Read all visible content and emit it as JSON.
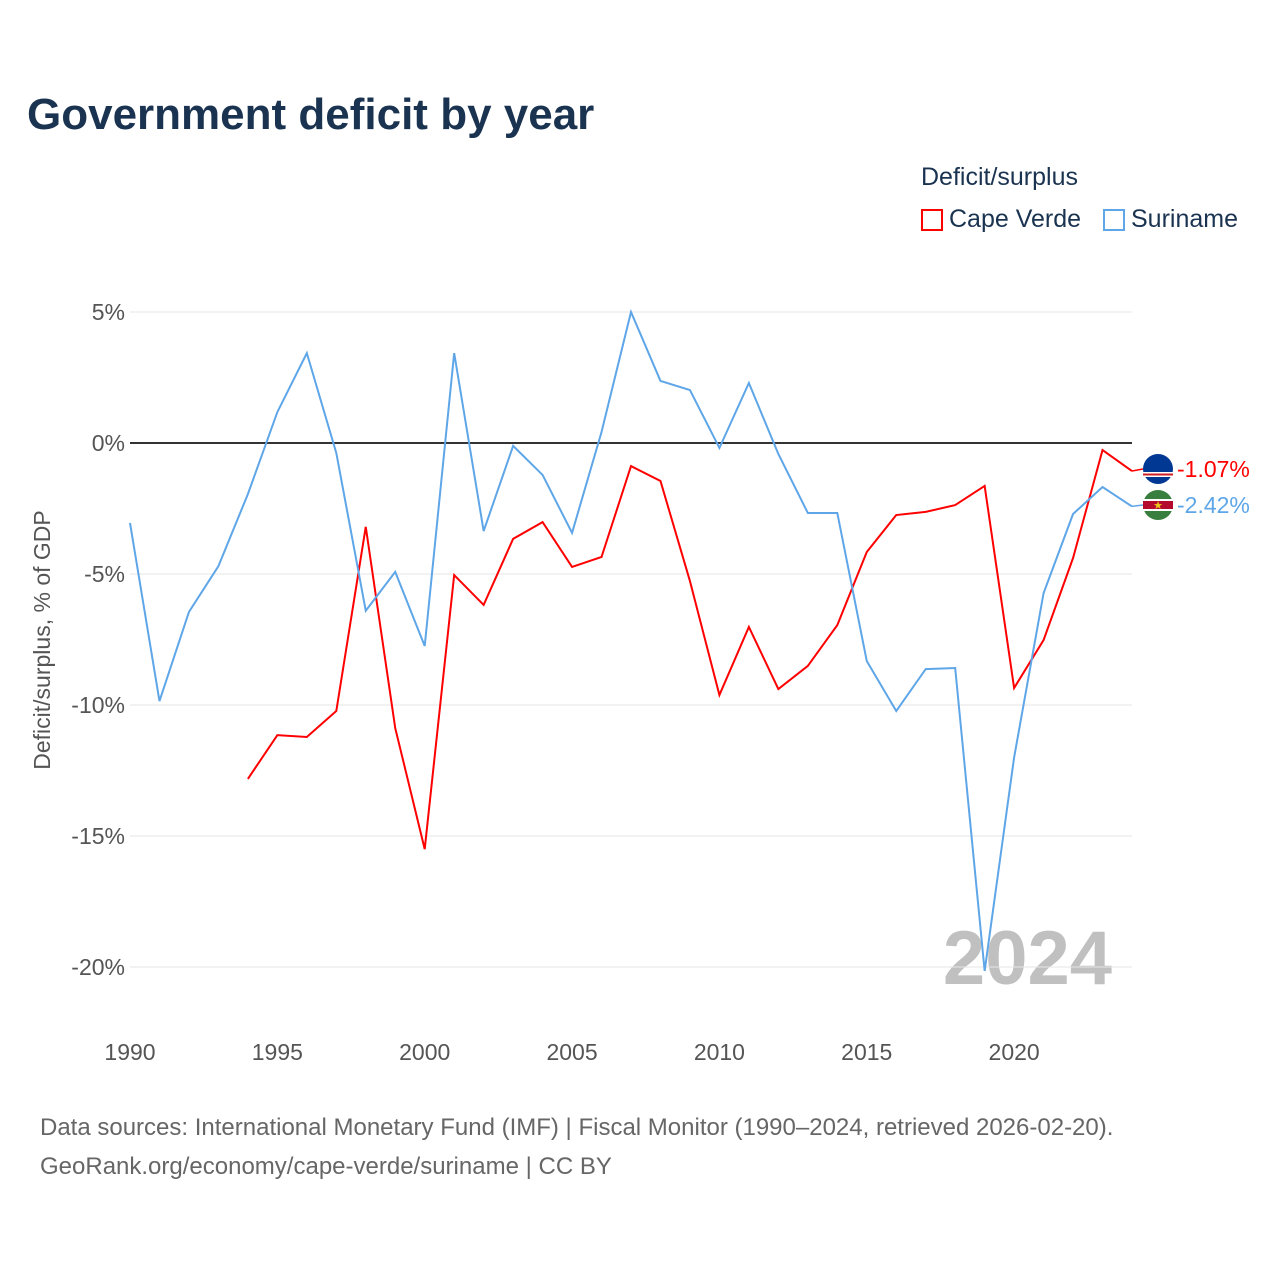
{
  "chart_data": {
    "type": "line",
    "title": "Government deficit by year",
    "ylabel": "Deficit/surplus, % of GDP",
    "xlabel": "",
    "xlim": [
      1990,
      2024
    ],
    "ylim": [
      -20,
      5
    ],
    "x_ticks": [
      1990,
      1995,
      2000,
      2005,
      2010,
      2015,
      2020
    ],
    "x_tick_labels": [
      "1990",
      "1995",
      "2000",
      "2005",
      "2010",
      "2015",
      "2020"
    ],
    "y_ticks": [
      5,
      0,
      -5,
      -10,
      -15,
      -20
    ],
    "y_tick_labels": [
      "5%",
      "0%",
      "-5%",
      "-10%",
      "-15%",
      "-20%"
    ],
    "grid": true,
    "legend": {
      "title": "Deficit/surplus",
      "placement": "top-right"
    },
    "watermark_year": "2024",
    "series": [
      {
        "name": "Cape Verde",
        "color": "#ff0000",
        "end_label": "-1.07%",
        "x": [
          1994,
          1995,
          1996,
          1997,
          1998,
          1999,
          2000,
          2001,
          2002,
          2003,
          2004,
          2005,
          2006,
          2007,
          2008,
          2009,
          2010,
          2011,
          2012,
          2013,
          2014,
          2015,
          2016,
          2017,
          2018,
          2019,
          2020,
          2021,
          2022,
          2023,
          2024
        ],
        "values": [
          -12.82,
          -11.15,
          -11.22,
          -10.23,
          -3.2,
          -10.88,
          -15.5,
          -5.04,
          -6.18,
          -3.66,
          -3.02,
          -4.73,
          -4.35,
          -0.88,
          -1.45,
          -5.27,
          -9.62,
          -7.02,
          -9.39,
          -8.51,
          -6.95,
          -4.16,
          -2.75,
          -2.63,
          -2.37,
          -1.64,
          -9.35,
          -7.52,
          -4.39,
          -0.27,
          -1.07
        ]
      },
      {
        "name": "Suriname",
        "color": "#5ea6e8",
        "end_label": "-2.42%",
        "x": [
          1990,
          1991,
          1992,
          1993,
          1994,
          1995,
          1996,
          1997,
          1998,
          1999,
          2000,
          2001,
          2002,
          2003,
          2004,
          2005,
          2006,
          2007,
          2008,
          2009,
          2010,
          2011,
          2012,
          2013,
          2014,
          2015,
          2016,
          2017,
          2018,
          2019,
          2020,
          2021,
          2022,
          2023,
          2024
        ],
        "values": [
          -3.05,
          -9.85,
          -6.45,
          -4.7,
          -1.95,
          1.18,
          3.43,
          -0.38,
          -6.4,
          -4.92,
          -7.75,
          3.43,
          -3.36,
          -0.11,
          -1.22,
          -3.43,
          0.42,
          5.0,
          2.37,
          2.02,
          -0.19,
          2.29,
          -0.42,
          -2.67,
          -2.67,
          -8.32,
          -10.23,
          -8.63,
          -8.59,
          -20.15,
          -12.0,
          -5.73,
          -2.71,
          -1.68,
          -2.42
        ]
      }
    ]
  },
  "source": {
    "line1": "Data sources: International Monetary Fund (IMF) | Fiscal Monitor (1990–2024, retrieved 2026-02-20).",
    "line2": "GeoRank.org/economy/cape-verde/suriname | CC BY"
  }
}
